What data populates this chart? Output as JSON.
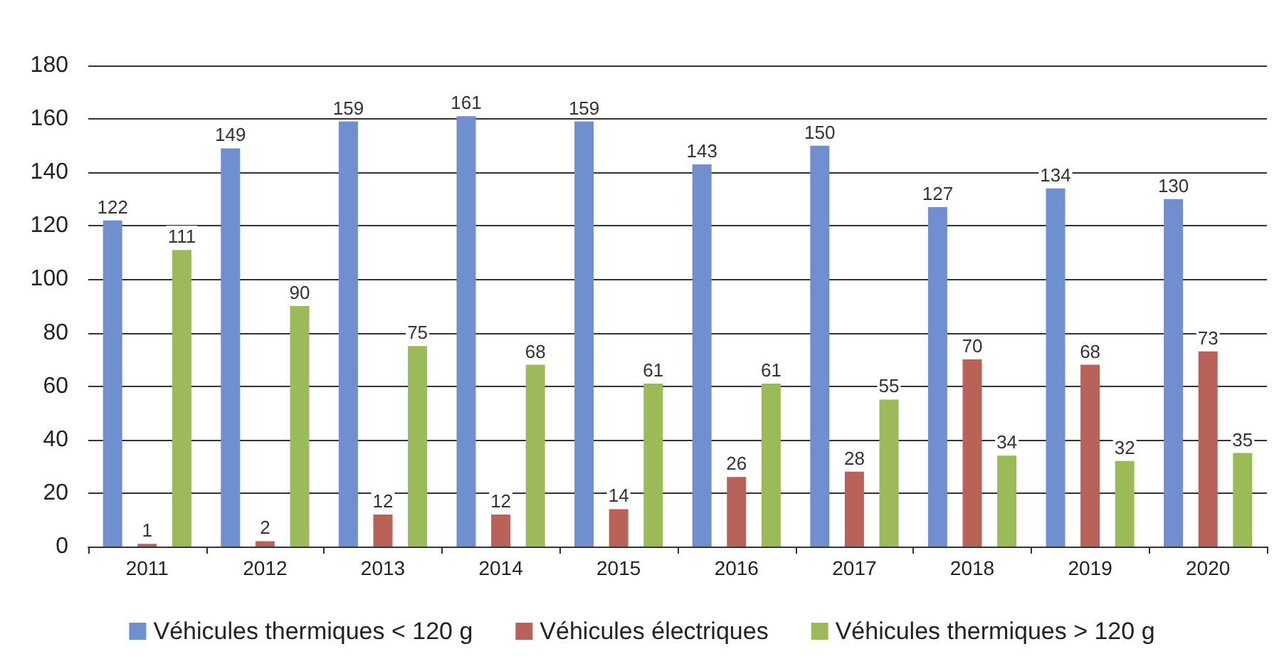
{
  "chart_data": {
    "type": "bar",
    "categories": [
      "2011",
      "2012",
      "2013",
      "2014",
      "2015",
      "2016",
      "2017",
      "2018",
      "2019",
      "2020"
    ],
    "series": [
      {
        "name": "Véhicules thermiques < 120 g",
        "color": "#6f8fd0",
        "values": [
          122,
          149,
          159,
          161,
          159,
          143,
          150,
          127,
          134,
          130
        ]
      },
      {
        "name": "Véhicules électriques",
        "color": "#b8625a",
        "values": [
          1,
          2,
          12,
          12,
          14,
          26,
          28,
          70,
          68,
          73
        ]
      },
      {
        "name": "Véhicules thermiques > 120 g",
        "color": "#9bbb59",
        "values": [
          111,
          90,
          75,
          68,
          61,
          61,
          55,
          34,
          32,
          35
        ]
      }
    ],
    "ylim": [
      0,
      180
    ],
    "yticks": [
      0,
      20,
      40,
      60,
      80,
      100,
      120,
      140,
      160,
      180
    ],
    "grid": "y",
    "legend": "bottom",
    "data_labels": true
  }
}
